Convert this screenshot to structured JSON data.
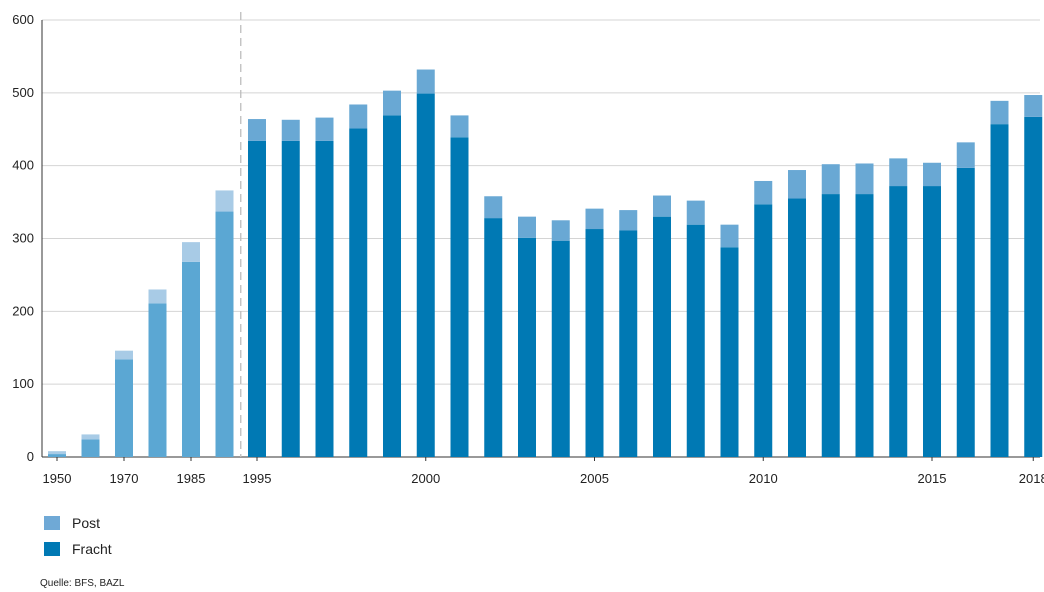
{
  "chart_data": {
    "type": "bar",
    "stacked": true,
    "ylim": [
      0,
      600
    ],
    "y_ticks": [
      0,
      100,
      200,
      300,
      400,
      500,
      600
    ],
    "grid": true,
    "legend_position": "bottom-left",
    "categories": [
      "1950",
      "1960",
      "1970",
      "1980",
      "1985",
      "1990",
      "1995",
      "1996",
      "1997",
      "1998",
      "1999",
      "2000",
      "2001",
      "2002",
      "2003",
      "2004",
      "2005",
      "2006",
      "2007",
      "2008",
      "2009",
      "2010",
      "2011",
      "2012",
      "2013",
      "2014",
      "2015",
      "2016",
      "2017",
      "2018"
    ],
    "x_tick_labels": [
      {
        "index": 0,
        "label": "1950"
      },
      {
        "index": 2,
        "label": "1970"
      },
      {
        "index": 4,
        "label": "1985"
      },
      {
        "index": 6,
        "label": "1995"
      },
      {
        "index": 11,
        "label": "2000"
      },
      {
        "index": 16,
        "label": "2005"
      },
      {
        "index": 21,
        "label": "2010"
      },
      {
        "index": 26,
        "label": "2015"
      },
      {
        "index": 29,
        "label": "2018"
      }
    ],
    "series": [
      {
        "name": "Fracht",
        "values": [
          4,
          24,
          134,
          211,
          268,
          337,
          434,
          434,
          434,
          451,
          469,
          499,
          439,
          328,
          301,
          297,
          313,
          311,
          330,
          319,
          288,
          347,
          355,
          361,
          361,
          372,
          372,
          397,
          457,
          467
        ]
      },
      {
        "name": "Post",
        "values": [
          4,
          7,
          12,
          19,
          27,
          29,
          30,
          29,
          32,
          33,
          34,
          33,
          30,
          30,
          29,
          28,
          28,
          28,
          29,
          33,
          31,
          32,
          39,
          41,
          42,
          38,
          32,
          35,
          32,
          30
        ]
      }
    ],
    "colors": {
      "fracht_early": "#5ba7d3",
      "post_early": "#a8cbe6",
      "fracht_late": "#0079b4",
      "post_late": "#69a8d4",
      "legend_post": "#6fa9d6",
      "legend_fracht": "#0079b4"
    },
    "early_period_count": 6,
    "period_divider_after_index": 5
  },
  "legend": {
    "post_label": "Post",
    "fracht_label": "Fracht"
  },
  "source": "Quelle: BFS, BAZL"
}
